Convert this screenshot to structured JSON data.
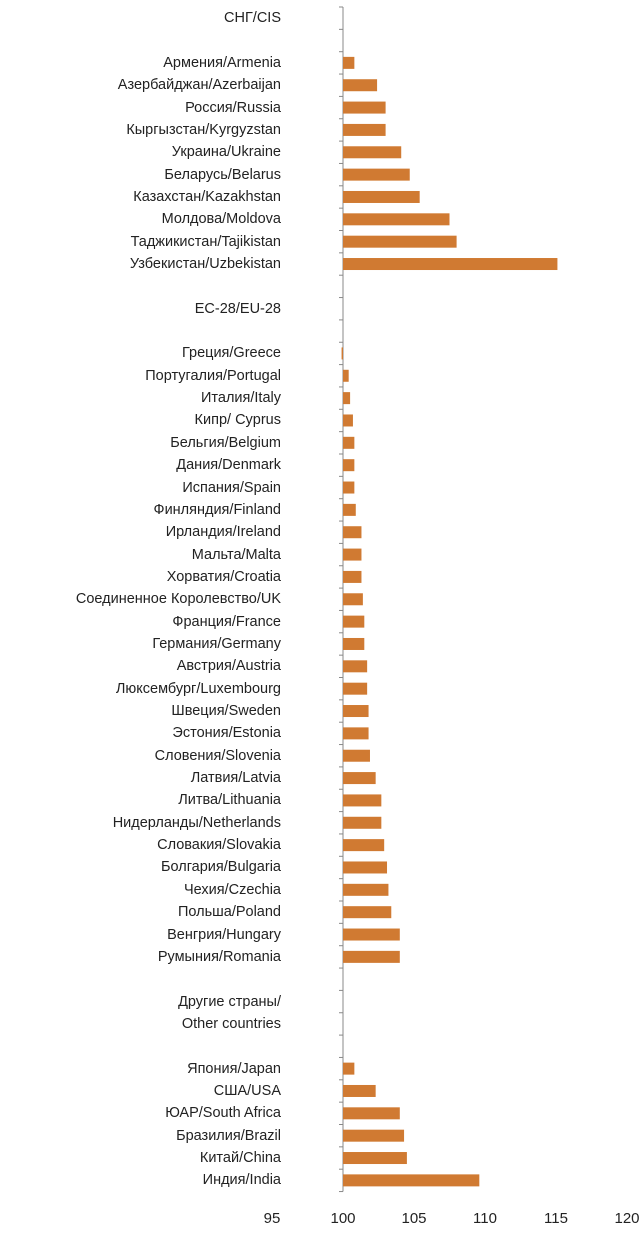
{
  "chart_data": {
    "type": "barh",
    "categories": [
      "СНГ/CIS",
      null,
      "Армения/Armenia",
      "Азербайджан/Azerbaijan",
      "Россия/Russia",
      "Кыргызстан/Kyrgyzstan",
      "Украина/Ukraine",
      "Беларусь/Belarus",
      "Казахстан/Kazakhstan",
      "Молдова/Moldova",
      "Таджикистан/Tajikistan",
      "Узбекистан/Uzbekistan",
      null,
      "ЕС-28/EU-28",
      null,
      "Греция/Greece",
      "Португалия/Portugal",
      "Италия/Italy",
      "Кипр/ Cyprus",
      "Бельгия/Belgium",
      "Дания/Denmark",
      "Испания/Spain",
      "Финляндия/Finland",
      "Ирландия/Ireland",
      "Мальта/Malta",
      "Хорватия/Croatia",
      "Соединенное Королевство/UK",
      "Франция/France",
      "Германия/Germany",
      "Австрия/Austria",
      "Люксембург/Luxembourg",
      "Швеция/Sweden",
      "Эстония/Estonia",
      "Словения/Slovenia",
      "Латвия/Latvia",
      "Литва/Lithuania",
      "Нидерланды/Netherlands",
      "Словакия/Slovakia",
      "Болгария/Bulgaria",
      "Чехия/Czechia",
      "Польша/Poland",
      "Венгрия/Hungary",
      "Румыния/Romania",
      null,
      "Другие страны/\nOther countries",
      null,
      null,
      "Япония/Japan",
      "США/USA",
      "ЮАР/South Africa",
      "Бразилия/Brazil",
      "Китай/China",
      "Индия/India"
    ],
    "values": [
      null,
      null,
      100.8,
      102.4,
      103.0,
      103.0,
      104.1,
      104.7,
      105.4,
      107.5,
      108.0,
      115.1,
      null,
      null,
      null,
      99.9,
      100.4,
      100.5,
      100.7,
      100.8,
      100.8,
      100.8,
      100.9,
      101.3,
      101.3,
      101.3,
      101.4,
      101.5,
      101.5,
      101.7,
      101.7,
      101.8,
      101.8,
      101.9,
      102.3,
      102.7,
      102.7,
      102.9,
      103.1,
      103.2,
      103.4,
      104.0,
      104.0,
      null,
      null,
      null,
      null,
      100.8,
      102.3,
      104.0,
      104.3,
      104.5,
      109.6
    ],
    "color": "#d07a32",
    "origin": 100,
    "xlim": [
      95,
      120
    ],
    "xticks": [
      95,
      100,
      105,
      110,
      115,
      120
    ],
    "grid": false
  }
}
